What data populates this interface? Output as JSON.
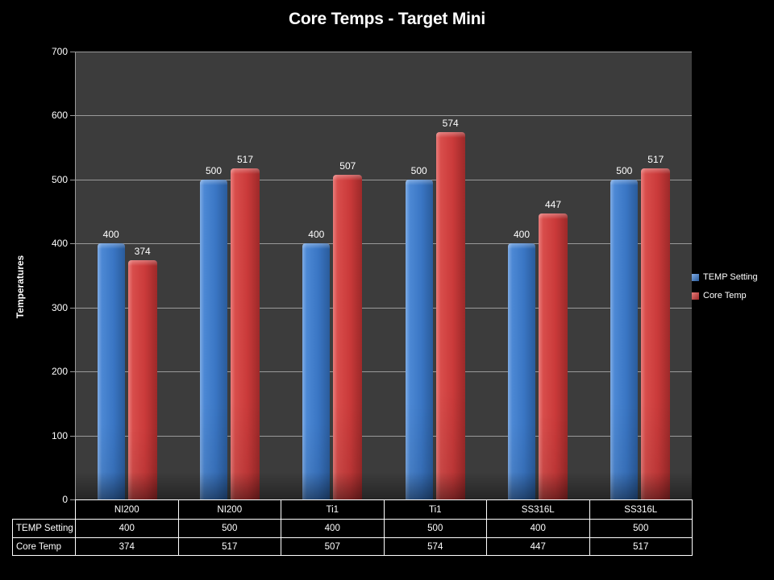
{
  "title": "Core Temps - Target Mini",
  "chart_data": {
    "type": "bar",
    "title": "Core Temps - Target Mini",
    "categories": [
      "NI200",
      "NI200",
      "Ti1",
      "Ti1",
      "SS316L",
      "SS316L"
    ],
    "series": [
      {
        "name": "TEMP Setting",
        "color": "#3a76c4",
        "values": [
          400,
          500,
          400,
          500,
          400,
          500
        ]
      },
      {
        "name": "Core Temp",
        "color": "#ca3a3a",
        "values": [
          374,
          517,
          507,
          574,
          447,
          517
        ]
      }
    ],
    "ylabel": "Temperatures",
    "xlabel": "",
    "ylim": [
      0,
      700
    ],
    "ytick_interval": 100,
    "grid": true,
    "legend_position": "right",
    "show_data_labels": true,
    "data_table": true
  },
  "colors": {
    "background": "#000000",
    "plot_background": "#3c3c3c",
    "gridline": "#9a9a9a",
    "text": "#ffffff",
    "series_blue": "#3a76c4",
    "series_red": "#ca3a3a"
  }
}
